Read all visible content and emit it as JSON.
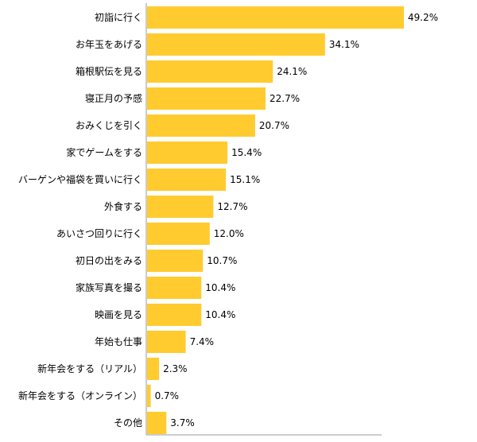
{
  "chart_data": {
    "type": "bar",
    "orientation": "horizontal",
    "categories": [
      "初詣に行く",
      "お年玉をあげる",
      "箱根駅伝を見る",
      "寝正月の予感",
      "おみくじを引く",
      "家でゲームをする",
      "バーゲンや福袋を買いに行く",
      "外食する",
      "あいさつ回りに行く",
      "初日の出をみる",
      "家族写真を撮る",
      "映画を見る",
      "年始も仕事",
      "新年会をする（リアル）",
      "新年会をする（オンライン）",
      "その他"
    ],
    "values": [
      49.2,
      34.1,
      24.1,
      22.7,
      20.7,
      15.4,
      15.1,
      12.7,
      12.0,
      10.7,
      10.4,
      10.4,
      7.4,
      2.3,
      0.7,
      3.7
    ],
    "value_labels": [
      "49.2%",
      "34.1%",
      "24.1%",
      "22.7%",
      "20.7%",
      "15.4%",
      "15.1%",
      "12.7%",
      "12.0%",
      "10.7%",
      "10.4%",
      "10.4%",
      "7.4%",
      "2.3%",
      "0.7%",
      "3.7%"
    ],
    "unit": "%",
    "xlim": [
      0,
      49.2
    ],
    "bar_color": "#FFCB2F",
    "axis_color": "#999999",
    "grid": false,
    "legend": false
  }
}
